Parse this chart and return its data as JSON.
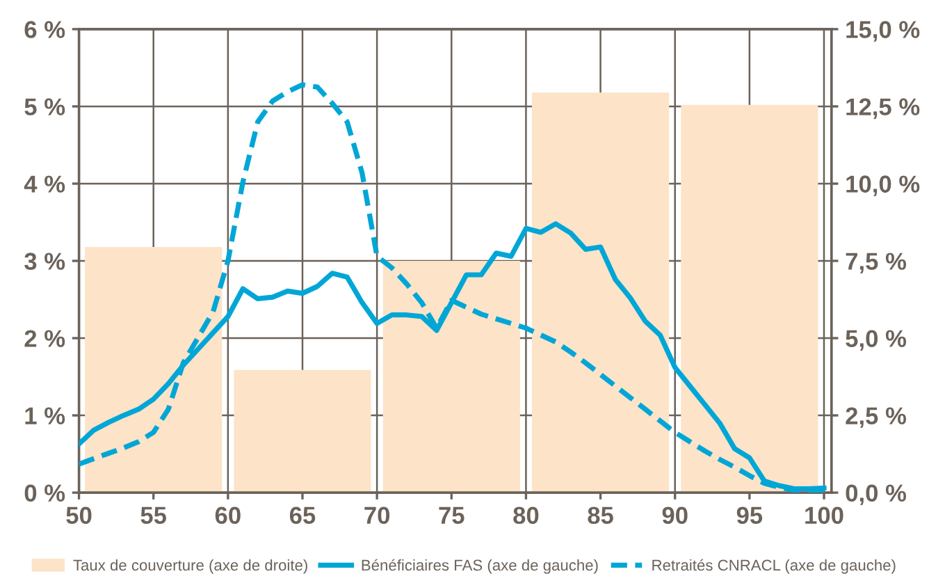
{
  "chart_data": {
    "type": "line",
    "x": [
      50,
      51,
      52,
      53,
      54,
      55,
      56,
      57,
      58,
      59,
      60,
      61,
      62,
      63,
      64,
      65,
      66,
      67,
      68,
      69,
      70,
      71,
      72,
      73,
      74,
      75,
      76,
      77,
      78,
      79,
      80,
      81,
      82,
      83,
      84,
      85,
      86,
      87,
      88,
      89,
      90,
      91,
      92,
      93,
      94,
      95,
      96,
      97,
      98,
      99,
      100
    ],
    "series": [
      {
        "name": "Taux de couverture (axe de droite)",
        "type": "bar",
        "axis": "y2",
        "color": "#fde3c8",
        "x": [
          55,
          65,
          75,
          85,
          95
        ],
        "values": [
          7.95,
          3.97,
          7.5,
          12.95,
          12.55
        ]
      },
      {
        "name": "Bénéficiaires FAS (axe de gauche)",
        "line_style": "solid",
        "color": "#00a6d6",
        "values": [
          0.63,
          0.81,
          0.91,
          1.0,
          1.08,
          1.21,
          1.41,
          1.65,
          1.86,
          2.07,
          2.28,
          2.64,
          2.51,
          2.53,
          2.61,
          2.58,
          2.67,
          2.84,
          2.79,
          2.46,
          2.19,
          2.3,
          2.3,
          2.28,
          2.1,
          2.46,
          2.82,
          2.82,
          3.1,
          3.06,
          3.42,
          3.37,
          3.48,
          3.36,
          3.15,
          3.18,
          2.76,
          2.52,
          2.22,
          2.04,
          1.62,
          1.38,
          1.14,
          0.9,
          0.57,
          0.45,
          0.15,
          0.09,
          0.05,
          0.05,
          0.06
        ]
      },
      {
        "name": "Retraités CNRACL (axe de gauche)",
        "line_style": "dashed",
        "color": "#00a6d6",
        "values": [
          0.37,
          0.44,
          0.51,
          0.58,
          0.66,
          0.78,
          1.08,
          1.68,
          2.01,
          2.34,
          3.0,
          4.02,
          4.8,
          5.07,
          5.19,
          5.28,
          5.25,
          5.04,
          4.8,
          4.14,
          3.06,
          2.91,
          2.7,
          2.46,
          2.13,
          2.49,
          2.4,
          2.31,
          2.25,
          2.19,
          2.13,
          2.04,
          1.95,
          1.82,
          1.68,
          1.53,
          1.38,
          1.23,
          1.08,
          0.93,
          0.78,
          0.66,
          0.54,
          0.43,
          0.33,
          0.22,
          0.12,
          0.07,
          0.03,
          0.02,
          0.01
        ]
      }
    ],
    "xlim": [
      50,
      100.5
    ],
    "xticks": [
      50,
      55,
      60,
      65,
      70,
      75,
      80,
      85,
      90,
      95,
      100
    ],
    "ylim": [
      0,
      6
    ],
    "yticks": [
      {
        "value": 0,
        "label": "0 %"
      },
      {
        "value": 1,
        "label": "1 %"
      },
      {
        "value": 2,
        "label": "2 %"
      },
      {
        "value": 3,
        "label": "3 %"
      },
      {
        "value": 4,
        "label": "4 %"
      },
      {
        "value": 5,
        "label": "5 %"
      },
      {
        "value": 6,
        "label": "6 %"
      }
    ],
    "y2lim": [
      0,
      15
    ],
    "y2ticks": [
      {
        "value": 0,
        "label": "0,0 %"
      },
      {
        "value": 2.5,
        "label": "2,5 %"
      },
      {
        "value": 5,
        "label": "5,0 %"
      },
      {
        "value": 7.5,
        "label": "7,5 %"
      },
      {
        "value": 10,
        "label": "10,0 %"
      },
      {
        "value": 12.5,
        "label": "12,5 %"
      },
      {
        "value": 15,
        "label": "15,0 %"
      }
    ],
    "grid": true,
    "legend": "bottom",
    "marker": "none"
  }
}
